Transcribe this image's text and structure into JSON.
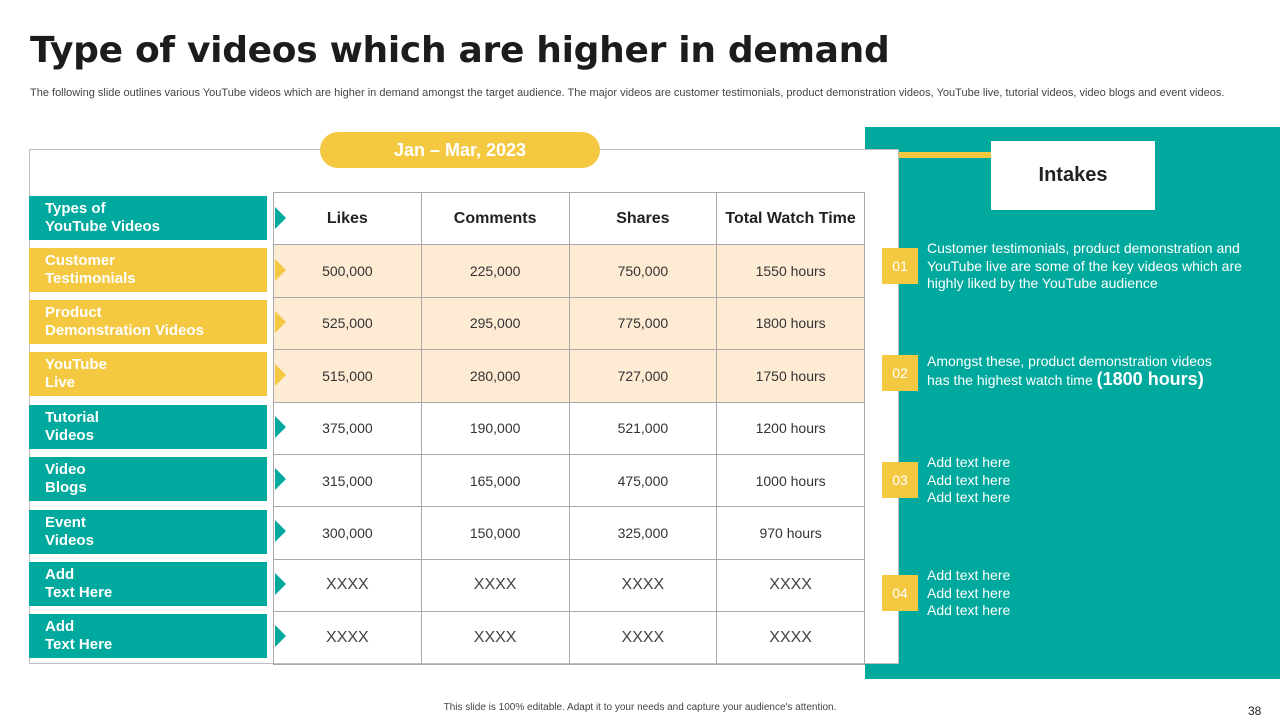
{
  "title": "Type of videos which are higher in demand",
  "subtitle": "The following slide outlines various YouTube videos which are higher in demand amongst the target audience. The major videos are customer testimonials, product demonstration videos, YouTube live, tutorial videos, video blogs and event videos.",
  "period": "Jan – Mar, 2023",
  "row_labels": [
    {
      "line1": "Types of",
      "line2": "YouTube Videos",
      "color": "teal"
    },
    {
      "line1": "Customer",
      "line2": "Testimonials",
      "color": "yellow"
    },
    {
      "line1": "Product",
      "line2": "Demonstration Videos",
      "color": "yellow"
    },
    {
      "line1": "YouTube",
      "line2": "Live",
      "color": "yellow"
    },
    {
      "line1": "Tutorial",
      "line2": "Videos",
      "color": "teal"
    },
    {
      "line1": "Video",
      "line2": "Blogs",
      "color": "teal"
    },
    {
      "line1": "Event",
      "line2": "Videos",
      "color": "teal"
    },
    {
      "line1": "Add",
      "line2": "Text Here",
      "color": "teal"
    },
    {
      "line1": "Add",
      "line2": "Text Here",
      "color": "teal"
    }
  ],
  "table": {
    "headers": [
      "Likes",
      "Comments",
      "Shares",
      "Total Watch Time"
    ],
    "rows": [
      [
        "500,000",
        "225,000",
        "750,000",
        "1550 hours"
      ],
      [
        "525,000",
        "295,000",
        "775,000",
        "1800 hours"
      ],
      [
        "515,000",
        "280,000",
        "727,000",
        "1750 hours"
      ],
      [
        "375,000",
        "190,000",
        "521,000",
        "1200 hours"
      ],
      [
        "315,000",
        "165,000",
        "475,000",
        "1000 hours"
      ],
      [
        "300,000",
        "150,000",
        "325,000",
        "970 hours"
      ],
      [
        "XXXX",
        "XXXX",
        "XXXX",
        "XXXX"
      ],
      [
        "XXXX",
        "XXXX",
        "XXXX",
        "XXXX"
      ]
    ]
  },
  "intakes": {
    "heading": "Intakes",
    "items": [
      {
        "num": "01",
        "text": "Customer testimonials, product demonstration and YouTube live are some of the key videos which are highly liked by the YouTube audience"
      },
      {
        "num": "02",
        "text": "Amongst these, product demonstration videos has the highest watch time",
        "highlight": "(1800 hours)"
      },
      {
        "num": "03",
        "lines": [
          "Add text here",
          "Add text here",
          "Add text here"
        ]
      },
      {
        "num": "04",
        "lines": [
          "Add text here",
          "Add text here",
          "Add text here"
        ]
      }
    ]
  },
  "footer": "This slide is 100% editable. Adapt it to your needs and capture your audience's attention.",
  "page_number": "38",
  "colors": {
    "teal": "#00a99d",
    "yellow": "#f5c842",
    "highlight_row": "#fdebd3"
  }
}
